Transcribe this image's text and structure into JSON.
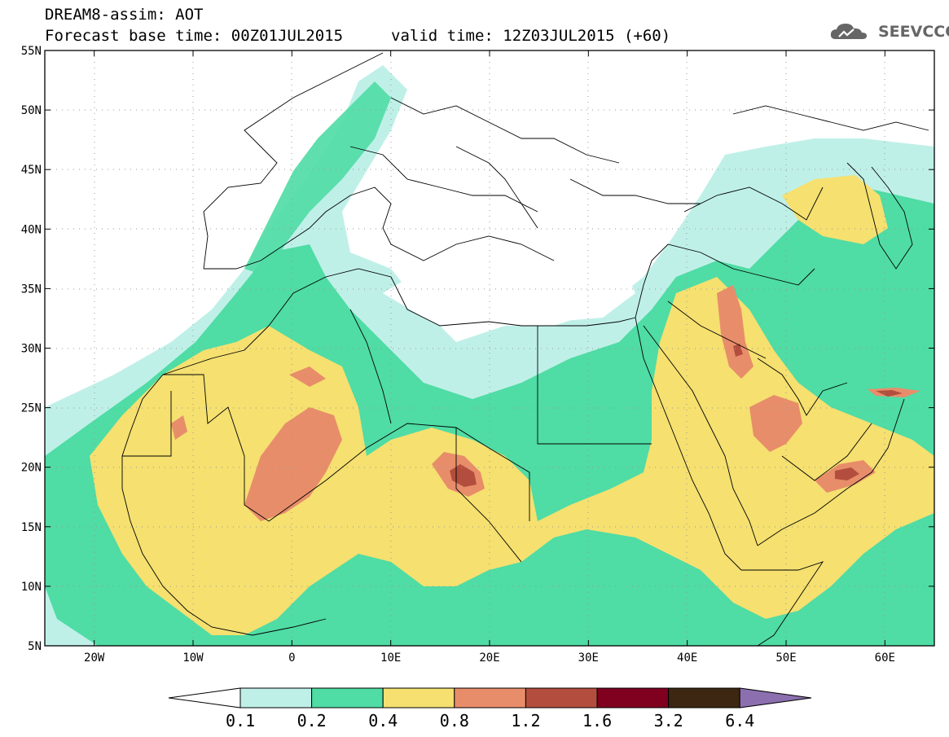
{
  "header": {
    "title_line1": "DREAM8-assim: AOT",
    "title_line2": "Forecast base time: 00Z01JUL2015",
    "valid_time": "valid time: 12Z03JUL2015 (+60)",
    "logo_text": "SEEVCCC",
    "logo_icon": "cloud-icon"
  },
  "map": {
    "lon_range": [
      -25,
      65
    ],
    "lat_range": [
      5,
      55
    ],
    "lon_ticks": [
      {
        "value": -20,
        "label": "20W"
      },
      {
        "value": -10,
        "label": "10W"
      },
      {
        "value": 0,
        "label": "0"
      },
      {
        "value": 10,
        "label": "10E"
      },
      {
        "value": 20,
        "label": "20E"
      },
      {
        "value": 30,
        "label": "30E"
      },
      {
        "value": 40,
        "label": "40E"
      },
      {
        "value": 50,
        "label": "50E"
      },
      {
        "value": 60,
        "label": "60E"
      }
    ],
    "lat_ticks": [
      {
        "value": 5,
        "label": "5N"
      },
      {
        "value": 10,
        "label": "10N"
      },
      {
        "value": 15,
        "label": "15N"
      },
      {
        "value": 20,
        "label": "20N"
      },
      {
        "value": 25,
        "label": "25N"
      },
      {
        "value": 30,
        "label": "30N"
      },
      {
        "value": 35,
        "label": "35N"
      },
      {
        "value": 40,
        "label": "40N"
      },
      {
        "value": 45,
        "label": "45N"
      },
      {
        "value": 50,
        "label": "50N"
      },
      {
        "value": 55,
        "label": "55N"
      }
    ],
    "grid": "dotted"
  },
  "colorbar": {
    "low_color": "#ffffff",
    "high_color": "#8b6fae",
    "segments": [
      {
        "color": "#bff0e8"
      },
      {
        "color": "#4fdca5"
      },
      {
        "color": "#f5e070"
      },
      {
        "color": "#e88d6a"
      },
      {
        "color": "#b34e3e"
      },
      {
        "color": "#800020"
      },
      {
        "color": "#3d2712"
      }
    ],
    "labels": [
      "0.1",
      "0.2",
      "0.4",
      "0.8",
      "1.2",
      "1.6",
      "3.2",
      "6.4"
    ]
  }
}
